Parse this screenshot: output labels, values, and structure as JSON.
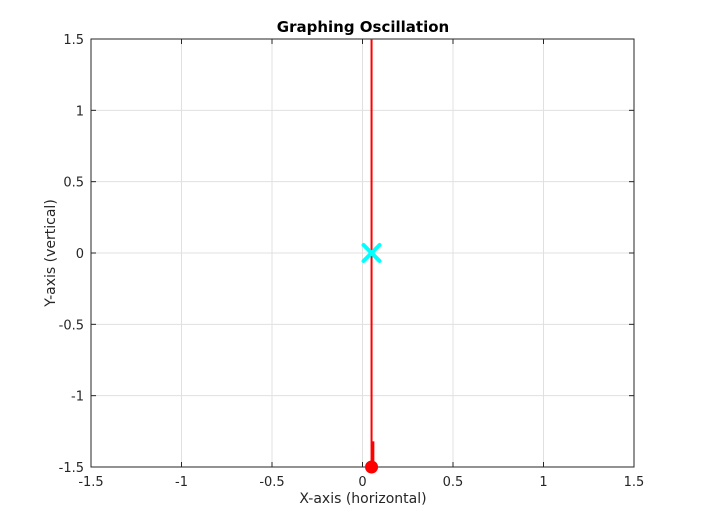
{
  "chart_data": {
    "type": "line",
    "title": "Graphing Oscillation",
    "xlabel": "X-axis (horizontal)",
    "ylabel": "Y-axis (vertical)",
    "xlim": [
      -1.5,
      1.5
    ],
    "ylim": [
      -1.5,
      1.5
    ],
    "xticks": [
      -1.5,
      -1,
      -0.5,
      0,
      0.5,
      1,
      1.5
    ],
    "yticks": [
      -1.5,
      -1,
      -0.5,
      0,
      0.5,
      1,
      1.5
    ],
    "xtick_labels": [
      "-1.5",
      "-1",
      "-0.5",
      "0",
      "0.5",
      "1",
      "1.5"
    ],
    "ytick_labels": [
      "-1.5",
      "-1",
      "-0.5",
      "0",
      "0.5",
      "1",
      "1.5"
    ],
    "grid": true,
    "series": [
      {
        "style": "line",
        "color": "#ff0000",
        "points": [
          [
            0.05,
            -1.5
          ],
          [
            0.05,
            1.5
          ]
        ]
      },
      {
        "style": "line",
        "color": "#ff0000",
        "points": [
          [
            0.06,
            -1.5
          ],
          [
            0.06,
            -1.32
          ]
        ]
      },
      {
        "style": "marker",
        "marker": "x",
        "color": "#00ffff",
        "points": [
          [
            0.05,
            0
          ]
        ]
      },
      {
        "style": "marker",
        "marker": "circle",
        "color": "#ff0000",
        "points": [
          [
            0.05,
            -1.5
          ]
        ]
      }
    ]
  }
}
